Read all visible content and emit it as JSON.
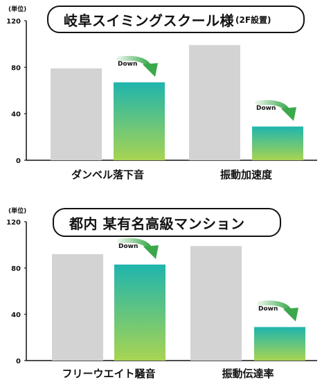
{
  "colors": {
    "before_bar": "#d3d3d3",
    "after_gradient_top": "#1fb5ad",
    "after_gradient_bottom": "#a8d452",
    "arrow": "#3aa84b",
    "axis": "#111111"
  },
  "icons": [
    "down-arrow-icon"
  ],
  "chart_data": [
    {
      "type": "bar",
      "title": "岐阜スイミングスクール様",
      "subtitle": "(2F設置)",
      "unit_label": "(単位)",
      "ylim": [
        0,
        120
      ],
      "yticks": [
        "0",
        "40",
        "80",
        "120"
      ],
      "grid": false,
      "categories": [
        "ダンベル落下音",
        "振動加速度"
      ],
      "series": [
        {
          "values": [
            79,
            99
          ]
        },
        {
          "values": [
            67,
            29
          ]
        }
      ],
      "annotations": [
        "Down",
        "Down"
      ]
    },
    {
      "type": "bar",
      "title": "都内 某有名高級マンション",
      "subtitle": "",
      "unit_label": "(単位)",
      "ylim": [
        0,
        120
      ],
      "yticks": [
        "0",
        "40",
        "80",
        "120"
      ],
      "grid": false,
      "categories": [
        "フリーウエイト騒音",
        "振動伝達率"
      ],
      "series": [
        {
          "values": [
            92,
            99
          ]
        },
        {
          "values": [
            83,
            29
          ]
        }
      ],
      "annotations": [
        "Down",
        "Down"
      ]
    }
  ]
}
